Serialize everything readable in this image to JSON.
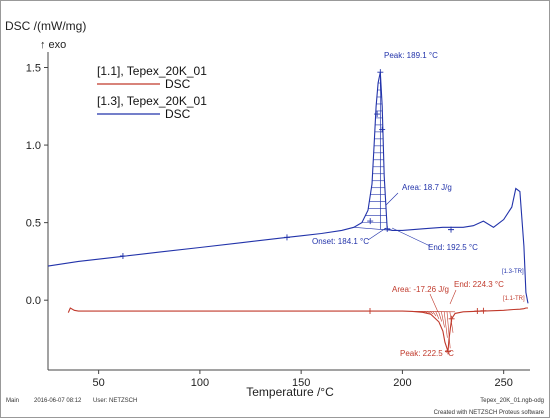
{
  "chart_data": {
    "type": "line",
    "ylabel": "DSC /(mW/mg)",
    "exo_label": "↑ exo",
    "xlabel": "Temperature /°C",
    "xlim": [
      25,
      263
    ],
    "ylim": [
      -0.45,
      1.6
    ],
    "x_ticks": [
      50,
      100,
      150,
      200,
      250
    ],
    "y_ticks": [
      0.0,
      0.5,
      1.0,
      1.5
    ],
    "x_tick_labels": [
      "50",
      "100",
      "150",
      "200",
      "250"
    ],
    "y_tick_labels": [
      "0.0",
      "0.5",
      "1.0",
      "1.5"
    ],
    "legend": {
      "placement": "top-left",
      "entries": [
        {
          "file": "[1.1], Tepex_20K_01",
          "series": "DSC",
          "color": "#c0392b"
        },
        {
          "file": "[1.3], Tepex_20K_01",
          "series": "DSC",
          "color": "#2233aa"
        }
      ]
    },
    "series": [
      {
        "name": "[1.3], Tepex_20K_01 DSC",
        "color": "#2233aa",
        "tag": "[1.3-TR]",
        "x": [
          25,
          40,
          60,
          80,
          100,
          120,
          140,
          150,
          160,
          170,
          176,
          180,
          183,
          185,
          186,
          187,
          188,
          189.1,
          190,
          191,
          192.5,
          195,
          200,
          210,
          220,
          230,
          235,
          240,
          245,
          250,
          254,
          256,
          258,
          260,
          261,
          262
        ],
        "y": [
          0.22,
          0.25,
          0.28,
          0.31,
          0.34,
          0.37,
          0.4,
          0.415,
          0.43,
          0.45,
          0.47,
          0.5,
          0.58,
          0.75,
          1.0,
          1.25,
          1.4,
          1.47,
          1.25,
          0.8,
          0.46,
          0.45,
          0.45,
          0.46,
          0.47,
          0.47,
          0.48,
          0.51,
          0.47,
          0.52,
          0.6,
          0.72,
          0.7,
          0.35,
          0.05,
          -0.02
        ]
      },
      {
        "name": "[1.1], Tepex_20K_01 DSC",
        "color": "#c0392b",
        "tag": "[1.1-TR]",
        "x": [
          35,
          36,
          38,
          40,
          60,
          100,
          150,
          180,
          200,
          205,
          210,
          214,
          218,
          220,
          221,
          222.5,
          223,
          224.3,
          226,
          230,
          240,
          250,
          255,
          258,
          260,
          261,
          262
        ],
        "y": [
          -0.08,
          -0.05,
          -0.065,
          -0.07,
          -0.07,
          -0.07,
          -0.07,
          -0.07,
          -0.07,
          -0.072,
          -0.078,
          -0.09,
          -0.14,
          -0.2,
          -0.27,
          -0.33,
          -0.25,
          -0.12,
          -0.085,
          -0.075,
          -0.07,
          -0.065,
          -0.06,
          -0.058,
          -0.055,
          -0.05,
          -0.05
        ]
      }
    ],
    "blue_peak_annotations": {
      "peak": "Peak: 189.1 °C",
      "area": "Area: 18.7 J/g",
      "onset": "Onset: 184.1 °C",
      "end": "End: 192.5 °C"
    },
    "red_peak_annotations": {
      "area": "Area: -17.26 J/g",
      "end": "End: 224.3 °C",
      "peak": "Peak: 222.5 °C"
    }
  },
  "footer": {
    "main_label": "Main",
    "timestamp": "2016-06-07 08:12",
    "user": "User: NETZSCH",
    "filename": "Tepex_20K_01.ngb-odg",
    "software": "Created with NETZSCH Proteus software"
  },
  "colors": {
    "blue": "#2233aa",
    "red": "#c0392b",
    "axis": "#444444"
  }
}
